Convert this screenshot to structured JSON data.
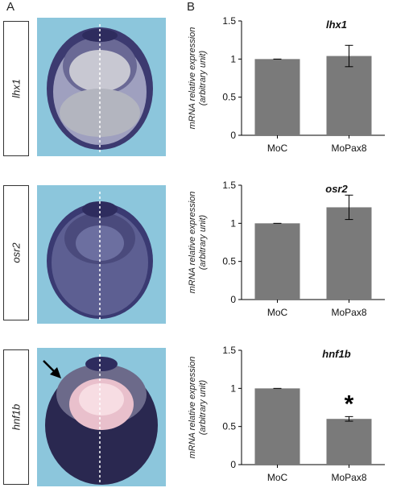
{
  "figure": {
    "panel_a_label": "A",
    "panel_b_label": "B",
    "rows": [
      {
        "gene": "lhx1",
        "has_arrow": false
      },
      {
        "gene": "osr2",
        "has_arrow": false
      },
      {
        "gene": "hnf1b",
        "has_arrow": true
      }
    ],
    "colors": {
      "background_blue": "#8cc6dc",
      "stain": "#2e2c5e",
      "bar": "#7a7a7a"
    }
  },
  "chart_data": [
    {
      "type": "bar",
      "title": "lhx1",
      "ylabel": "mRNA relative expression",
      "ylabel2": "(arbitrary unit)",
      "categories": [
        "MoC",
        "MoPax8"
      ],
      "values": [
        1.0,
        1.04
      ],
      "errors": [
        0.0,
        0.14
      ],
      "ylim": [
        0,
        1.5
      ],
      "yticks": [
        "0",
        "0.5",
        "1",
        "1.5"
      ],
      "significance": [
        "",
        ""
      ]
    },
    {
      "type": "bar",
      "title": "osr2",
      "ylabel": "mRNA relative expression",
      "ylabel2": "(arbitrary unit)",
      "categories": [
        "MoC",
        "MoPax8"
      ],
      "values": [
        1.0,
        1.21
      ],
      "errors": [
        0.0,
        0.16
      ],
      "ylim": [
        0,
        1.5
      ],
      "yticks": [
        "0",
        "0.5",
        "1",
        "1.5"
      ],
      "significance": [
        "",
        ""
      ]
    },
    {
      "type": "bar",
      "title": "hnf1b",
      "ylabel": "mRNA relative expression",
      "ylabel2": "(arbitrary unit)",
      "categories": [
        "MoC",
        "MoPax8"
      ],
      "values": [
        1.0,
        0.6
      ],
      "errors": [
        0.0,
        0.03
      ],
      "ylim": [
        0,
        1.5
      ],
      "yticks": [
        "0",
        "0.5",
        "1",
        "1.5"
      ],
      "significance": [
        "",
        "*"
      ]
    }
  ]
}
